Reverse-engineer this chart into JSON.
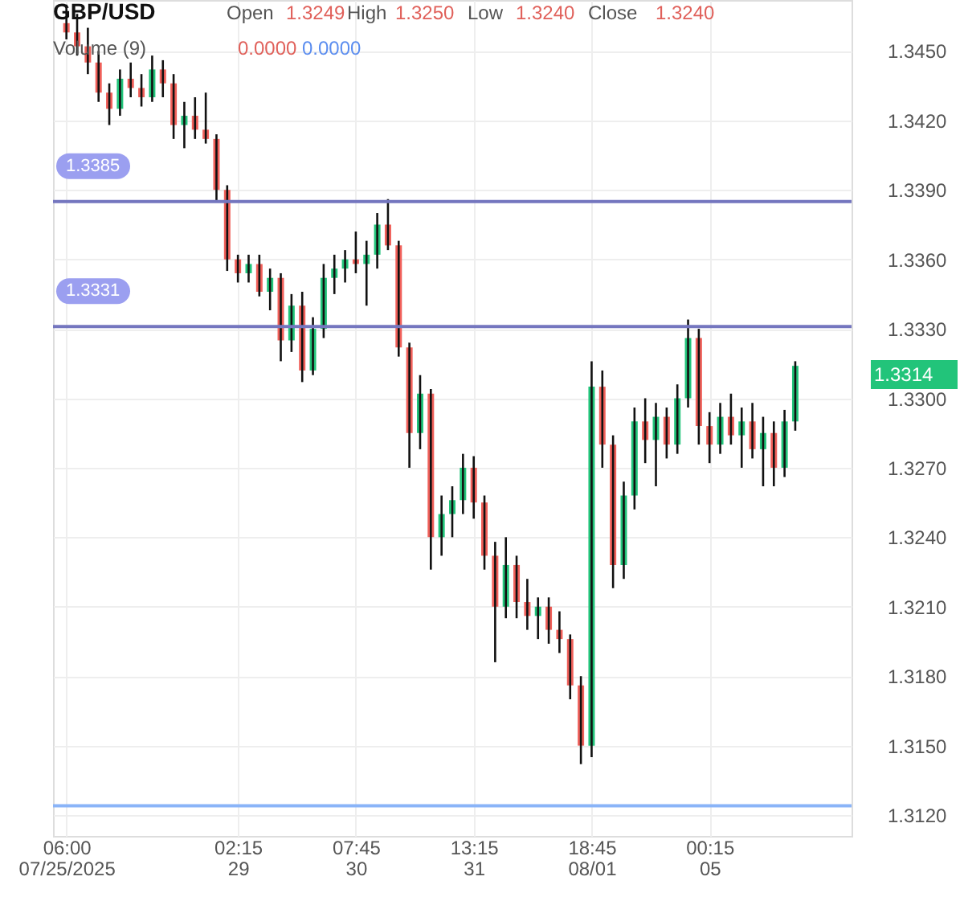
{
  "chart_data": {
    "type": "candlestick",
    "title": "GBP/USD",
    "annotations": [
      "Open",
      "1.3249",
      "High",
      "1.3250",
      "Low",
      "1.3240",
      "Close",
      "1.3240",
      "Volume (9)",
      "0.0000",
      "0.0000",
      "1.3314"
    ],
    "categories": [
      "06:00\n07/25/2025",
      null,
      null,
      null,
      null,
      null,
      null,
      null,
      null,
      null,
      null,
      null,
      null,
      null,
      null,
      null,
      "02:15\n29",
      null,
      null,
      null,
      null,
      null,
      null,
      null,
      null,
      null,
      null,
      "07:45\n30",
      null,
      null,
      null,
      null,
      null,
      null,
      null,
      null,
      null,
      null,
      "13:15\n31",
      null,
      null,
      null,
      null,
      null,
      null,
      null,
      null,
      null,
      null,
      "18:45\n08/01",
      null,
      null,
      null,
      null,
      null,
      null,
      null,
      null,
      null,
      null,
      "00:15\n05",
      null,
      null,
      null,
      null,
      null,
      null,
      null,
      null
    ],
    "ohlc": [
      [
        1.3462,
        1.347,
        1.3455,
        1.3458
      ],
      [
        1.3458,
        1.3466,
        1.3448,
        1.3452
      ],
      [
        1.3452,
        1.346,
        1.344,
        1.3445
      ],
      [
        1.3445,
        1.345,
        1.3428,
        1.3432
      ],
      [
        1.3432,
        1.3436,
        1.3418,
        1.3425
      ],
      [
        1.3425,
        1.3442,
        1.3422,
        1.3438
      ],
      [
        1.3438,
        1.3445,
        1.343,
        1.3434
      ],
      [
        1.3434,
        1.344,
        1.3426,
        1.343
      ],
      [
        1.343,
        1.3448,
        1.3428,
        1.3442
      ],
      [
        1.3442,
        1.3446,
        1.343,
        1.3436
      ],
      [
        1.3436,
        1.344,
        1.3412,
        1.3418
      ],
      [
        1.3418,
        1.3428,
        1.3408,
        1.3422
      ],
      [
        1.3422,
        1.343,
        1.3412,
        1.3416
      ],
      [
        1.3416,
        1.3432,
        1.341,
        1.3412
      ],
      [
        1.3412,
        1.3414,
        1.3385,
        1.339
      ],
      [
        1.339,
        1.3392,
        1.3355,
        1.336
      ],
      [
        1.336,
        1.3362,
        1.335,
        1.3354
      ],
      [
        1.3354,
        1.3362,
        1.335,
        1.3358
      ],
      [
        1.3358,
        1.3362,
        1.3344,
        1.3346
      ],
      [
        1.3346,
        1.3356,
        1.3338,
        1.3352
      ],
      [
        1.3352,
        1.3354,
        1.3316,
        1.3325
      ],
      [
        1.3325,
        1.3345,
        1.332,
        1.334
      ],
      [
        1.334,
        1.3346,
        1.3307,
        1.3312
      ],
      [
        1.3312,
        1.3335,
        1.331,
        1.333
      ],
      [
        1.333,
        1.3358,
        1.3326,
        1.3352
      ],
      [
        1.3352,
        1.3362,
        1.3345,
        1.3356
      ],
      [
        1.3356,
        1.3364,
        1.335,
        1.336
      ],
      [
        1.336,
        1.3372,
        1.3354,
        1.3358
      ],
      [
        1.3358,
        1.3368,
        1.334,
        1.3362
      ],
      [
        1.3362,
        1.338,
        1.3356,
        1.3375
      ],
      [
        1.3375,
        1.3386,
        1.3364,
        1.3366
      ],
      [
        1.3366,
        1.3368,
        1.3318,
        1.3322
      ],
      [
        1.3322,
        1.3324,
        1.327,
        1.3285
      ],
      [
        1.3285,
        1.331,
        1.3278,
        1.3302
      ],
      [
        1.3302,
        1.3304,
        1.3226,
        1.324
      ],
      [
        1.324,
        1.3258,
        1.3232,
        1.325
      ],
      [
        1.325,
        1.3262,
        1.324,
        1.3256
      ],
      [
        1.3256,
        1.3276,
        1.325,
        1.327
      ],
      [
        1.327,
        1.3275,
        1.3248,
        1.3255
      ],
      [
        1.3255,
        1.3258,
        1.3226,
        1.3232
      ],
      [
        1.3232,
        1.3238,
        1.3186,
        1.321
      ],
      [
        1.321,
        1.324,
        1.3205,
        1.3228
      ],
      [
        1.3228,
        1.3232,
        1.3205,
        1.3212
      ],
      [
        1.3212,
        1.3222,
        1.32,
        1.3206
      ],
      [
        1.3206,
        1.3214,
        1.3196,
        1.321
      ],
      [
        1.321,
        1.3214,
        1.3194,
        1.32
      ],
      [
        1.32,
        1.3208,
        1.319,
        1.3196
      ],
      [
        1.3196,
        1.3198,
        1.317,
        1.3176
      ],
      [
        1.3176,
        1.318,
        1.3142,
        1.315
      ],
      [
        1.315,
        1.3316,
        1.3145,
        1.3305
      ],
      [
        1.3305,
        1.3312,
        1.327,
        1.328
      ],
      [
        1.328,
        1.3284,
        1.3218,
        1.3228
      ],
      [
        1.3228,
        1.3264,
        1.3222,
        1.3258
      ],
      [
        1.3258,
        1.3296,
        1.3252,
        1.329
      ],
      [
        1.329,
        1.33,
        1.3272,
        1.3282
      ],
      [
        1.3282,
        1.3298,
        1.3262,
        1.3292
      ],
      [
        1.3292,
        1.3296,
        1.3274,
        1.328
      ],
      [
        1.328,
        1.3306,
        1.3276,
        1.33
      ],
      [
        1.33,
        1.3334,
        1.3296,
        1.3326
      ],
      [
        1.3326,
        1.333,
        1.328,
        1.3288
      ],
      [
        1.3288,
        1.3294,
        1.3272,
        1.328
      ],
      [
        1.328,
        1.3298,
        1.3276,
        1.3292
      ],
      [
        1.3292,
        1.3302,
        1.328,
        1.3284
      ],
      [
        1.3284,
        1.3296,
        1.327,
        1.329
      ],
      [
        1.329,
        1.3298,
        1.3274,
        1.3278
      ],
      [
        1.3278,
        1.3292,
        1.3262,
        1.3285
      ],
      [
        1.3285,
        1.329,
        1.3262,
        1.327
      ],
      [
        1.327,
        1.3295,
        1.3266,
        1.329
      ],
      [
        1.329,
        1.3316,
        1.3286,
        1.3314
      ]
    ],
    "ylim": [
      1.3111,
      1.3472
    ],
    "yticks": [
      {
        "value": 1.312,
        "label": "1.3120"
      },
      {
        "value": 1.315,
        "label": "1.3150"
      },
      {
        "value": 1.318,
        "label": "1.3180"
      },
      {
        "value": 1.321,
        "label": "1.3210"
      },
      {
        "value": 1.324,
        "label": "1.3240"
      },
      {
        "value": 1.327,
        "label": "1.3270"
      },
      {
        "value": 1.33,
        "label": "1.3300"
      },
      {
        "value": 1.333,
        "label": "1.3330"
      },
      {
        "value": 1.336,
        "label": "1.3360"
      },
      {
        "value": 1.339,
        "label": "1.3390"
      },
      {
        "value": 1.342,
        "label": "1.3420"
      },
      {
        "value": 1.345,
        "label": "1.3450"
      }
    ],
    "ref_lines": [
      {
        "axis": "y",
        "value": 1.3385,
        "label": "1.3385",
        "color": "#7476bf"
      },
      {
        "axis": "y",
        "value": 1.3331,
        "label": "1.3331",
        "color": "#7476bf"
      },
      {
        "axis": "y",
        "value": 1.3124,
        "color": "#8ab4f8"
      }
    ],
    "grid": true
  }
}
